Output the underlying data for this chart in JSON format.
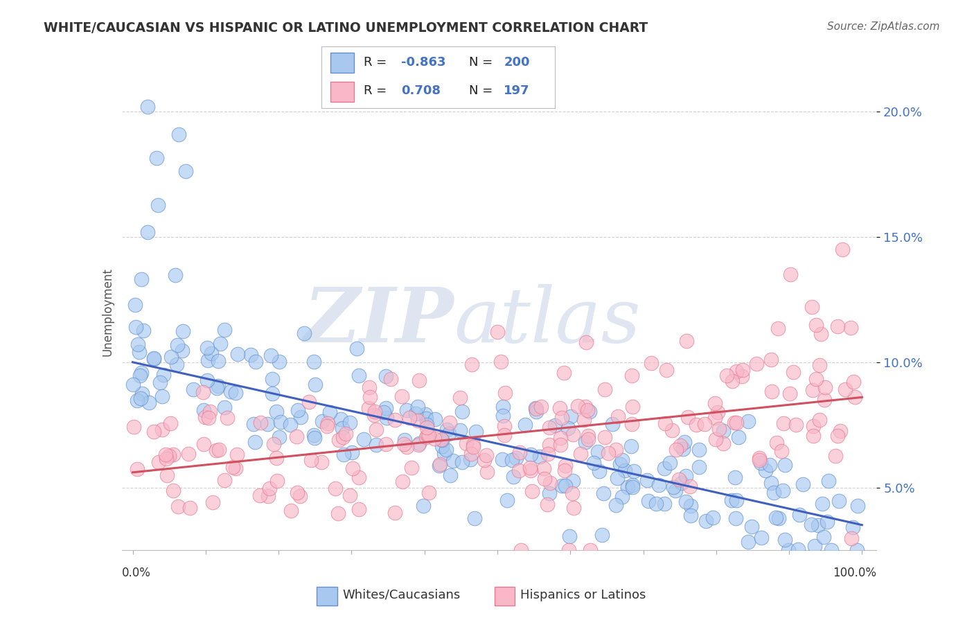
{
  "title": "WHITE/CAUCASIAN VS HISPANIC OR LATINO UNEMPLOYMENT CORRELATION CHART",
  "source": "Source: ZipAtlas.com",
  "ylabel": "Unemployment",
  "watermark_zip": "ZIP",
  "watermark_atlas": "atlas",
  "blue_R": -0.863,
  "blue_N": 200,
  "pink_R": 0.708,
  "pink_N": 197,
  "blue_color": "#a8c8f0",
  "pink_color": "#f8b8c8",
  "blue_edge_color": "#6090d0",
  "pink_edge_color": "#e87890",
  "blue_line_color": "#4060c0",
  "pink_line_color": "#d05060",
  "blue_trend_x0": 0.0,
  "blue_trend_x1": 1.0,
  "blue_trend_y0": 0.1,
  "blue_trend_y1": 0.035,
  "pink_trend_x0": 0.0,
  "pink_trend_x1": 1.0,
  "pink_trend_y0": 0.056,
  "pink_trend_y1": 0.086,
  "ylim_min": 0.025,
  "ylim_max": 0.215,
  "xlim_min": -0.015,
  "xlim_max": 1.02,
  "yticks": [
    0.05,
    0.1,
    0.15,
    0.2
  ],
  "ytick_labels": [
    "5.0%",
    "10.0%",
    "15.0%",
    "20.0%"
  ],
  "ytick_color": "#4472c4",
  "grid_color": "#cccccc",
  "title_color": "#333333",
  "source_color": "#666666",
  "ylabel_color": "#555555",
  "accent_color": "#4472c4"
}
